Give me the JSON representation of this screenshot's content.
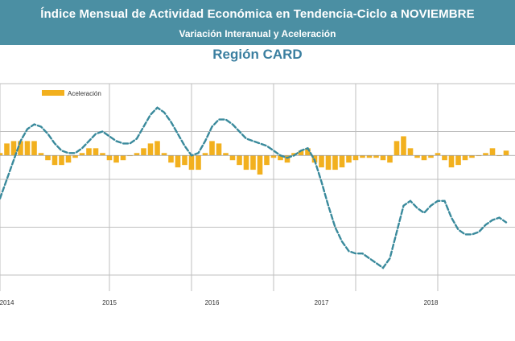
{
  "header": {
    "title": "Índice Mensual de Actividad Económica en Tendencia-Ciclo a NOVIEMBRE",
    "subtitle": "Variación Interanual y Aceleración"
  },
  "chart_data": {
    "type": "line",
    "title": "Región CARD",
    "legend": {
      "label": "Aceleración",
      "placement": "top-left"
    },
    "grid": true,
    "x_tick_labels": [
      "2014",
      "2015",
      "2016",
      "2017",
      "2018"
    ],
    "series": [
      {
        "style": "dashed-line",
        "color": "#3a8a9c",
        "values": [
          1.2,
          2.0,
          2.8,
          3.6,
          4.1,
          4.3,
          4.2,
          3.9,
          3.5,
          3.2,
          3.1,
          3.1,
          3.3,
          3.6,
          3.9,
          4.0,
          3.8,
          3.6,
          3.5,
          3.5,
          3.7,
          4.2,
          4.7,
          5.0,
          4.8,
          4.4,
          3.9,
          3.4,
          3.0,
          3.1,
          3.6,
          4.2,
          4.5,
          4.5,
          4.3,
          4.0,
          3.7,
          3.6,
          3.5,
          3.4,
          3.2,
          3.0,
          2.9,
          3.0,
          3.2,
          3.3,
          2.8,
          1.9,
          0.9,
          0.0,
          -0.6,
          -1.0,
          -1.1,
          -1.1,
          -1.3,
          -1.5,
          -1.7,
          -1.3,
          -0.2,
          0.9,
          1.1,
          0.8,
          0.6,
          0.9,
          1.1,
          1.1,
          0.4,
          -0.1,
          -0.3,
          -0.3,
          -0.2,
          0.1,
          0.3,
          0.4,
          0.2
        ]
      },
      {
        "name": "Aceleración",
        "style": "bar",
        "color": "#f2b01e",
        "values": [
          0.1,
          0.5,
          0.6,
          0.6,
          0.6,
          0.6,
          0.1,
          -0.2,
          -0.4,
          -0.4,
          -0.3,
          -0.1,
          0.1,
          0.3,
          0.3,
          0.1,
          -0.2,
          -0.3,
          -0.2,
          0.0,
          0.1,
          0.3,
          0.5,
          0.6,
          0.1,
          -0.3,
          -0.5,
          -0.4,
          -0.6,
          -0.6,
          0.1,
          0.6,
          0.5,
          0.1,
          -0.2,
          -0.4,
          -0.6,
          -0.6,
          -0.8,
          -0.4,
          -0.1,
          -0.2,
          -0.3,
          0.1,
          0.2,
          0.3,
          -0.3,
          -0.5,
          -0.6,
          -0.6,
          -0.5,
          -0.3,
          -0.2,
          -0.1,
          -0.1,
          -0.1,
          -0.2,
          -0.3,
          0.6,
          0.8,
          0.3,
          -0.1,
          -0.2,
          -0.1,
          0.1,
          -0.2,
          -0.5,
          -0.4,
          -0.2,
          -0.1,
          0.0,
          0.1,
          0.3,
          0.0,
          0.2
        ]
      }
    ],
    "ylim": [
      -2,
      6
    ],
    "bar_ylim": [
      -5,
      3
    ]
  }
}
